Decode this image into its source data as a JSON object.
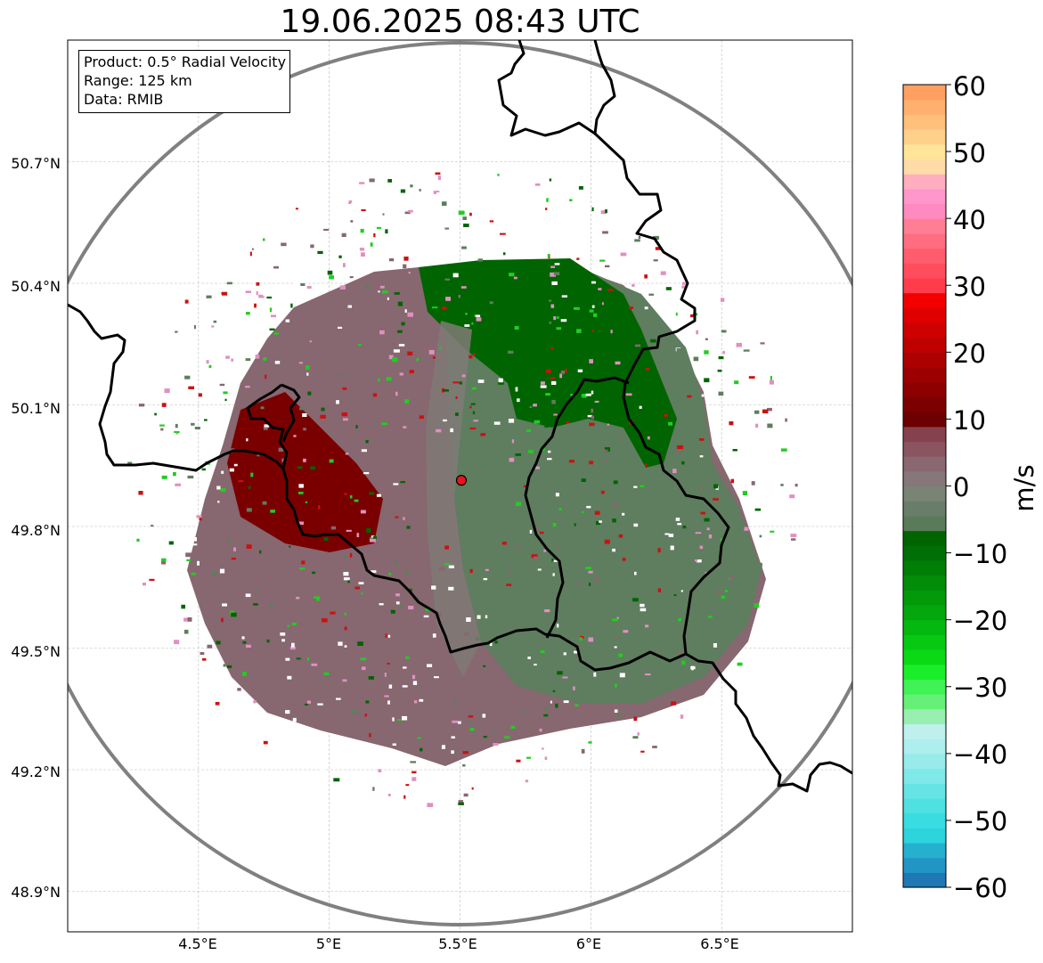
{
  "title": "19.06.2025 08:43 UTC",
  "info_box": {
    "product": "Product: 0.5° Radial Velocity",
    "range": "Range: 125 km",
    "data": "Data: RMIB"
  },
  "map": {
    "radar_site": {
      "lon": 5.505,
      "lat": 49.914,
      "color": "#e8141b"
    },
    "lon_range": [
      4.0,
      7.0
    ],
    "lat_range": [
      48.8,
      51.0
    ],
    "lat_ticks": [
      "50.7°N",
      "50.4°N",
      "50.1°N",
      "49.8°N",
      "49.5°N",
      "49.2°N",
      "48.9°N"
    ],
    "lon_ticks": [
      "4.5°E",
      "5°E",
      "5.5°E",
      "6°E",
      "6.5°E"
    ],
    "range_ring_color": "#808080",
    "border_color": "#000000"
  },
  "colorbar": {
    "label": "m/s",
    "ticks": [
      "60",
      "50",
      "40",
      "30",
      "20",
      "10",
      "0",
      "−10",
      "−20",
      "−30",
      "−40",
      "−50",
      "−60"
    ],
    "range": [
      -60,
      60
    ],
    "colors_bottom_to_top": [
      "#1f77b4",
      "#2196c4",
      "#25b0d0",
      "#2cd4dc",
      "#39dce0",
      "#4fe0e2",
      "#66e4e5",
      "#7fe8e8",
      "#97ebeb",
      "#aeeeee",
      "#bff0ee",
      "#98f0b0",
      "#66f077",
      "#3ff255",
      "#1aee2a",
      "#0ada14",
      "#07c912",
      "#05b80f",
      "#04a80c",
      "#039a0a",
      "#028c08",
      "#017e06",
      "#007006",
      "#006500",
      "#5a7b5a",
      "#697e6a",
      "#7a8475",
      "#86787a",
      "#8a6872",
      "#8a5460",
      "#85424e",
      "#6d0000",
      "#7d0000",
      "#8d0000",
      "#9c0000",
      "#ad0000",
      "#be0000",
      "#cf0000",
      "#e00000",
      "#f20000",
      "#ff3b4c",
      "#ff4d5e",
      "#ff5d6e",
      "#ff6e80",
      "#ff7e95",
      "#ff8ac0",
      "#ff96cc",
      "#ffaec0",
      "#ffdca6",
      "#ffe49a",
      "#ffd08a",
      "#ffc07c",
      "#ffb06e",
      "#ffa060"
    ]
  },
  "velocity_colors": {
    "strong_inbound": "#006400",
    "inbound": "#5f7d5f",
    "near_zero": "#7f7a76",
    "outbound": "#876770",
    "strong_outbound": "#7a0000",
    "speckle_green": "#22cc22",
    "speckle_red": "#cc1111",
    "speckle_pink": "#e090c0"
  }
}
